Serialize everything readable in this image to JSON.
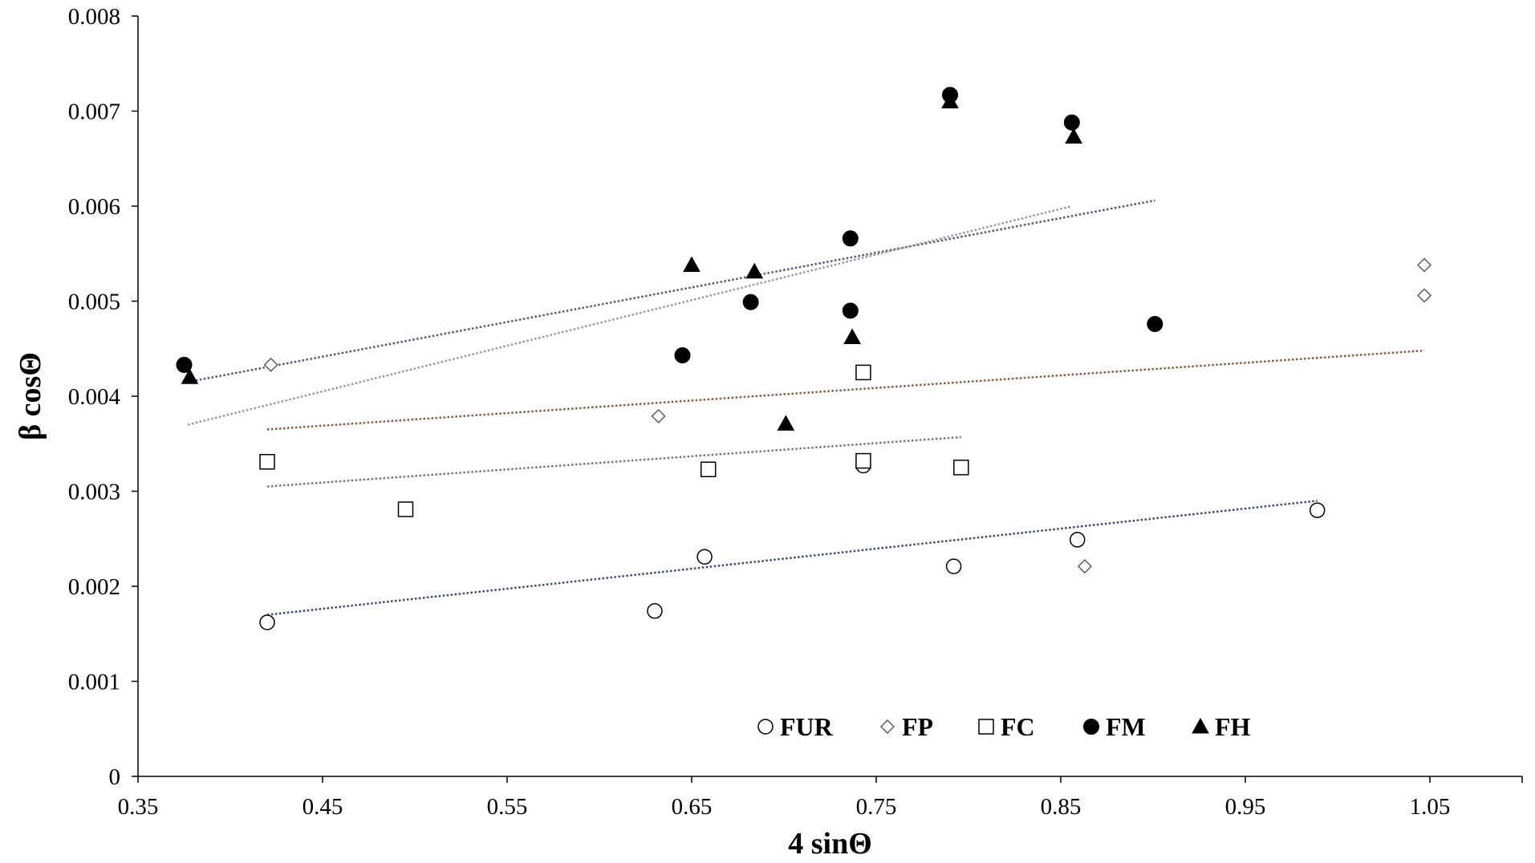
{
  "chart_data": {
    "type": "scatter",
    "title": "",
    "xlabel": "4 sinΘ",
    "ylabel": "β cosΘ",
    "xlim": [
      0.35,
      1.1
    ],
    "ylim": [
      0,
      0.008
    ],
    "x_ticks": [
      0.35,
      0.45,
      0.55,
      0.65,
      0.75,
      0.85,
      0.95,
      1.05
    ],
    "x_tick_labels": [
      "0.35",
      "0.45",
      "0.55",
      "0.65",
      "0.75",
      "0.85",
      "0.95",
      "1.05"
    ],
    "y_ticks": [
      0,
      0.001,
      0.002,
      0.003,
      0.004,
      0.005,
      0.006,
      0.007,
      0.008
    ],
    "y_tick_labels": [
      "0",
      "0.001",
      "0.002",
      "0.003",
      "0.004",
      "0.005",
      "0.006",
      "0.007",
      "0.008"
    ],
    "grid": false,
    "legend_position": "bottom-center (inside plot)",
    "series": [
      {
        "name": "FUR",
        "marker": "circle-open",
        "points": [
          [
            0.42,
            0.00162
          ],
          [
            0.63,
            0.00174
          ],
          [
            0.657,
            0.00231
          ],
          [
            0.743,
            0.00327
          ],
          [
            0.792,
            0.00221
          ],
          [
            0.859,
            0.00249
          ],
          [
            0.989,
            0.0028
          ]
        ],
        "trendline": {
          "x": [
            0.42,
            0.989
          ],
          "y": [
            0.0017,
            0.0029
          ],
          "color": "#3a4a7a"
        }
      },
      {
        "name": "FP",
        "marker": "diamond-open",
        "points": [
          [
            0.422,
            0.00433
          ],
          [
            0.632,
            0.00379
          ],
          [
            0.863,
            0.00221
          ],
          [
            1.047,
            0.00538
          ],
          [
            1.047,
            0.00506
          ]
        ],
        "trendline": {
          "x": [
            0.42,
            1.047
          ],
          "y": [
            0.00365,
            0.00448
          ],
          "color": "#8b5a3c"
        }
      },
      {
        "name": "FC",
        "marker": "square-open",
        "points": [
          [
            0.42,
            0.00331
          ],
          [
            0.495,
            0.00281
          ],
          [
            0.659,
            0.00323
          ],
          [
            0.743,
            0.00425
          ],
          [
            0.743,
            0.00332
          ],
          [
            0.796,
            0.00325
          ]
        ],
        "trendline": {
          "x": [
            0.42,
            0.796
          ],
          "y": [
            0.00305,
            0.00357
          ],
          "color": "#777777"
        }
      },
      {
        "name": "FM",
        "marker": "circle-filled",
        "points": [
          [
            0.375,
            0.00433
          ],
          [
            0.645,
            0.00443
          ],
          [
            0.682,
            0.00499
          ],
          [
            0.736,
            0.00566
          ],
          [
            0.736,
            0.0049
          ],
          [
            0.79,
            0.00717
          ],
          [
            0.856,
            0.00688
          ],
          [
            0.901,
            0.00476
          ]
        ],
        "trendline": {
          "x": [
            0.377,
            0.901
          ],
          "y": [
            0.00415,
            0.00606
          ],
          "color": "#555577"
        }
      },
      {
        "name": "FH",
        "marker": "triangle-filled",
        "points": [
          [
            0.378,
            0.0042
          ],
          [
            0.65,
            0.00538
          ],
          [
            0.684,
            0.00531
          ],
          [
            0.701,
            0.00371
          ],
          [
            0.737,
            0.00462
          ],
          [
            0.79,
            0.0071
          ],
          [
            0.857,
            0.00673
          ]
        ],
        "trendline": {
          "x": [
            0.377,
            0.856
          ],
          "y": [
            0.0037,
            0.006
          ],
          "color": "#999999"
        }
      }
    ]
  }
}
